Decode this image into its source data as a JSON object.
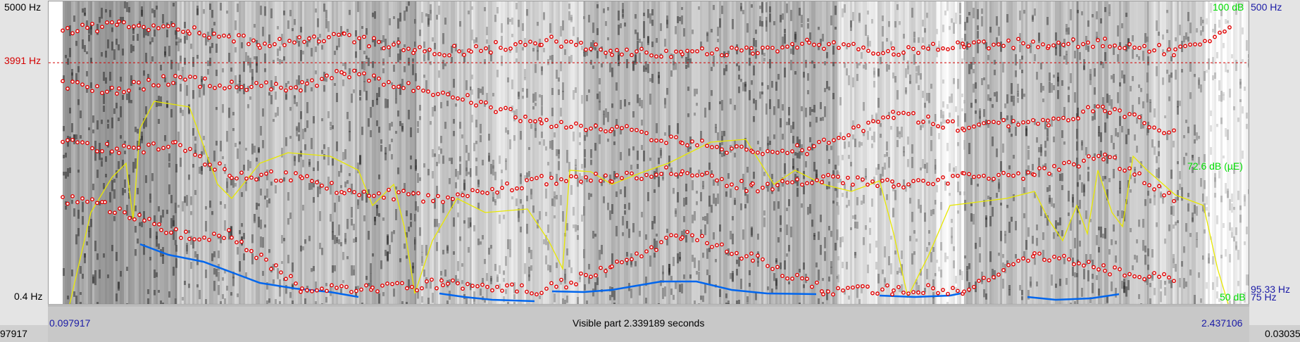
{
  "y_axis_left": {
    "top_label": "5000 Hz",
    "cursor_label": "3991 Hz",
    "bottom_label": "0.4 Hz"
  },
  "y_axis_right": {
    "intensity_top": "100 dB",
    "intensity_mid": "72.6 dB (µE)",
    "intensity_bottom": "50 dB",
    "pitch_top": "500 Hz",
    "pitch_value": "95.33 Hz",
    "pitch_bottom": "75 Hz"
  },
  "time_axis": {
    "start": "0.097917",
    "end": "2.437106",
    "visible_part": "Visible part 2.339189 seconds",
    "left_window_value": "97917",
    "right_window_value": "0.03035"
  },
  "colors": {
    "formant": "#e00000",
    "intensity": "#e8e800",
    "pitch": "#0066ee",
    "cursor": "#d40000"
  },
  "view": {
    "freq_max_hz": 5000,
    "cursor_hz": 3991,
    "intensity_range_db": [
      50,
      100
    ],
    "pitch_range_hz": [
      75,
      500
    ]
  }
}
